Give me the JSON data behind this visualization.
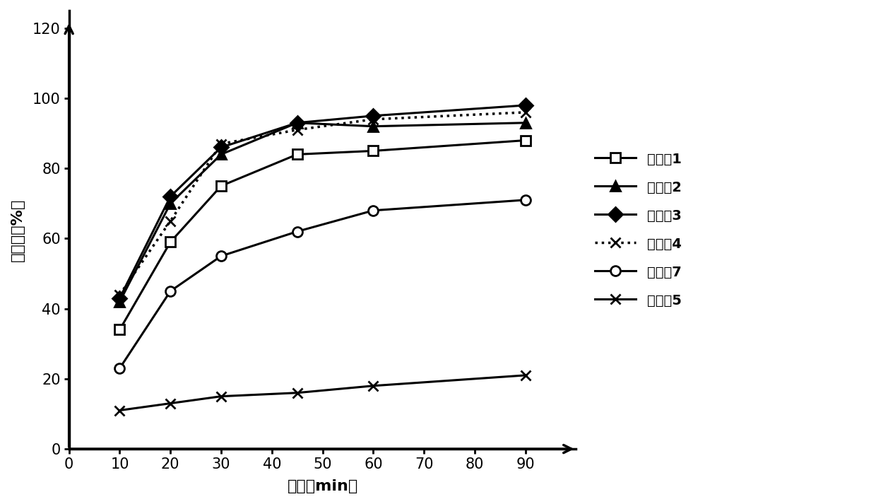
{
  "x": [
    10,
    20,
    30,
    45,
    60,
    90
  ],
  "series_order": [
    "实施例1",
    "实施例2",
    "实施例3",
    "实施例4",
    "实施例7",
    "实施例5"
  ],
  "series": {
    "实施例1": {
      "y": [
        34,
        59,
        75,
        84,
        85,
        88
      ],
      "marker": "s",
      "linestyle": "-",
      "linewidth": 2.2,
      "markerfacecolor": "white"
    },
    "实施例2": {
      "y": [
        42,
        70,
        84,
        93,
        92,
        93
      ],
      "marker": "^",
      "linestyle": "-",
      "linewidth": 2.2,
      "markerfacecolor": "black"
    },
    "实施例3": {
      "y": [
        43,
        72,
        86,
        93,
        95,
        98
      ],
      "marker": "D",
      "linestyle": "-",
      "linewidth": 2.2,
      "markerfacecolor": "black"
    },
    "实施例4": {
      "y": [
        44,
        65,
        87,
        91,
        94,
        96
      ],
      "marker": "x",
      "linestyle": ":",
      "linewidth": 2.5,
      "markerfacecolor": "black"
    },
    "实施例7": {
      "y": [
        23,
        45,
        55,
        62,
        68,
        71
      ],
      "marker": "o",
      "linestyle": "-",
      "linewidth": 2.2,
      "markerfacecolor": "white"
    },
    "实施例5": {
      "y": [
        11,
        13,
        15,
        16,
        18,
        21
      ],
      "marker": "x",
      "linestyle": "-",
      "linewidth": 2.2,
      "markerfacecolor": "black"
    }
  },
  "xlabel": "时间（min）",
  "ylabel": "溶出度（%）",
  "xlim": [
    0,
    100
  ],
  "ylim": [
    0,
    125
  ],
  "xticks": [
    0,
    10,
    20,
    30,
    40,
    50,
    60,
    70,
    80,
    90
  ],
  "yticks": [
    0,
    20,
    40,
    60,
    80,
    100,
    120
  ],
  "color": "#000000",
  "markersize": 10,
  "label_fontsize": 16,
  "tick_fontsize": 15,
  "legend_fontsize": 14
}
